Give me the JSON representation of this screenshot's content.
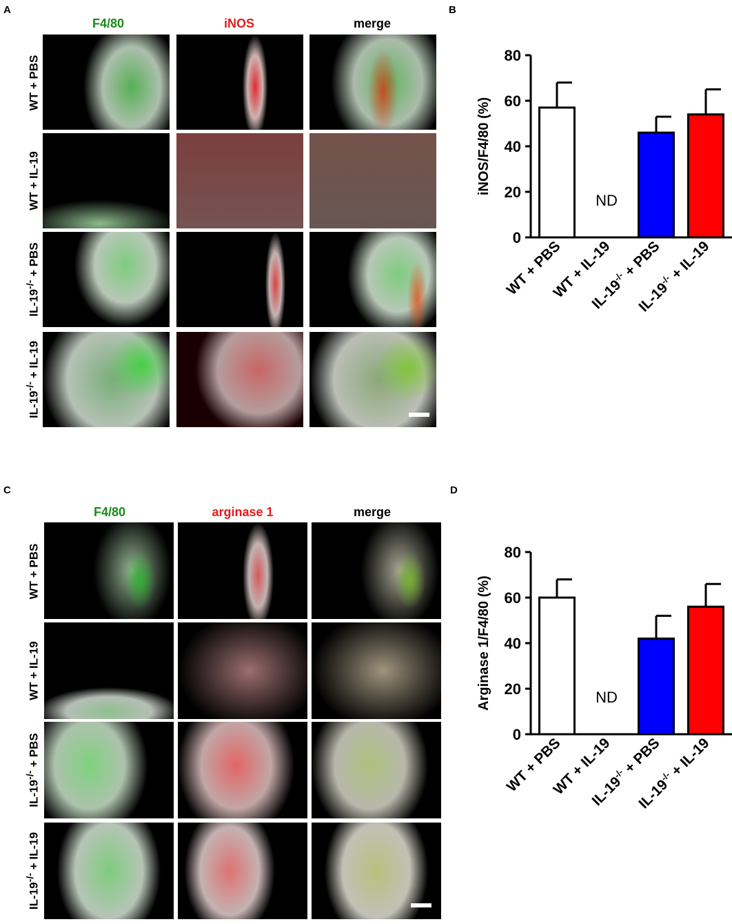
{
  "panels": [
    {
      "letter": "A",
      "columns": [
        {
          "label": "F4/80",
          "color": "#1a8a1a"
        },
        {
          "label": "iNOS",
          "color": "#e31b1b"
        },
        {
          "label": "merge",
          "color": "#000000"
        }
      ],
      "rows": [
        {
          "prefix": "WT + PBS",
          "sup": "",
          "suffix": ""
        },
        {
          "prefix": "WT + IL-19",
          "sup": "",
          "suffix": ""
        },
        {
          "prefix": "IL-19",
          "sup": "-/-",
          "suffix": " + PBS"
        },
        {
          "prefix": "IL-19",
          "sup": "-/-",
          "suffix": " + IL-19"
        }
      ]
    },
    {
      "letter": "C",
      "columns": [
        {
          "label": "F4/80",
          "color": "#1a8a1a"
        },
        {
          "label": "arginase 1",
          "color": "#e31b1b"
        },
        {
          "label": "merge",
          "color": "#000000"
        }
      ],
      "rows": [
        {
          "prefix": "WT + PBS",
          "sup": "",
          "suffix": ""
        },
        {
          "prefix": "WT + IL-19",
          "sup": "",
          "suffix": ""
        },
        {
          "prefix": "IL-19",
          "sup": "-/-",
          "suffix": " + PBS"
        },
        {
          "prefix": "IL-19",
          "sup": "-/-",
          "suffix": " + IL-19"
        }
      ]
    }
  ],
  "chart_data": [
    {
      "panel": "B",
      "type": "bar",
      "ylabel": "iNOS/F4/80 (%)",
      "ylim": [
        0,
        80
      ],
      "yticks": [
        0,
        20,
        40,
        60,
        80
      ],
      "categories": [
        {
          "prefix": "WT + PBS",
          "sup": "",
          "suffix": ""
        },
        {
          "prefix": "WT + IL-19",
          "sup": "",
          "suffix": ""
        },
        {
          "prefix": "IL-19",
          "sup": "-/-",
          "suffix": " + PBS"
        },
        {
          "prefix": "IL-19",
          "sup": "-/-",
          "suffix": " + IL-19"
        }
      ],
      "values": [
        57,
        null,
        46,
        54
      ],
      "errors": [
        11,
        null,
        7,
        11
      ],
      "colors": [
        "#ffffff",
        "#ffffff",
        "#0000ff",
        "#ff0000"
      ],
      "annotations": [
        {
          "category_index": 1,
          "text": "ND"
        }
      ]
    },
    {
      "panel": "D",
      "type": "bar",
      "ylabel": "Arginase 1/F4/80 (%)",
      "ylim": [
        0,
        80
      ],
      "yticks": [
        0,
        20,
        40,
        60,
        80
      ],
      "categories": [
        {
          "prefix": "WT + PBS",
          "sup": "",
          "suffix": ""
        },
        {
          "prefix": "WT + IL-19",
          "sup": "",
          "suffix": ""
        },
        {
          "prefix": "IL-19",
          "sup": "-/-",
          "suffix": " + PBS"
        },
        {
          "prefix": "IL-19",
          "sup": "-/-",
          "suffix": " + IL-19"
        }
      ],
      "values": [
        60,
        null,
        42,
        56
      ],
      "errors": [
        8,
        null,
        10,
        10
      ],
      "colors": [
        "#ffffff",
        "#ffffff",
        "#0000ff",
        "#ff0000"
      ],
      "annotations": [
        {
          "category_index": 1,
          "text": "ND"
        }
      ]
    }
  ]
}
